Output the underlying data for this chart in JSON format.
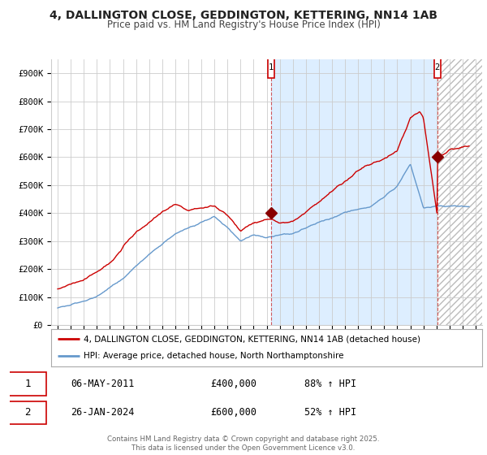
{
  "title": "4, DALLINGTON CLOSE, GEDDINGTON, KETTERING, NN14 1AB",
  "subtitle": "Price paid vs. HM Land Registry's House Price Index (HPI)",
  "title_fontsize": 10,
  "subtitle_fontsize": 8.5,
  "ylim": [
    0,
    950000
  ],
  "yticks": [
    0,
    100000,
    200000,
    300000,
    400000,
    500000,
    600000,
    700000,
    800000,
    900000
  ],
  "ytick_labels": [
    "£0",
    "£100K",
    "£200K",
    "£300K",
    "£400K",
    "£500K",
    "£600K",
    "£700K",
    "£800K",
    "£900K"
  ],
  "xlim_start": 1994.5,
  "xlim_end": 2027.5,
  "xticks": [
    1995,
    1996,
    1997,
    1998,
    1999,
    2000,
    2001,
    2002,
    2003,
    2004,
    2005,
    2006,
    2007,
    2008,
    2009,
    2010,
    2011,
    2012,
    2013,
    2014,
    2015,
    2016,
    2017,
    2018,
    2019,
    2020,
    2021,
    2022,
    2023,
    2024,
    2025,
    2026,
    2027
  ],
  "line1_color": "#cc0000",
  "line2_color": "#6699cc",
  "line1_label": "4, DALLINGTON CLOSE, GEDDINGTON, KETTERING, NN14 1AB (detached house)",
  "line2_label": "HPI: Average price, detached house, North Northamptonshire",
  "annotation1_label": "1",
  "annotation1_date": 2011.35,
  "annotation1_price": 400000,
  "annotation2_label": "2",
  "annotation2_date": 2024.07,
  "annotation2_price": 600000,
  "transaction1_date": "06-MAY-2011",
  "transaction1_price": "£400,000",
  "transaction1_hpi": "88% ↑ HPI",
  "transaction2_date": "26-JAN-2024",
  "transaction2_price": "£600,000",
  "transaction2_hpi": "52% ↑ HPI",
  "footer": "Contains HM Land Registry data © Crown copyright and database right 2025.\nThis data is licensed under the Open Government Licence v3.0.",
  "bg_color": "#ffffff",
  "grid_color": "#cccccc",
  "shade_color": "#ddeeff",
  "hatch_color": "#dddddd"
}
